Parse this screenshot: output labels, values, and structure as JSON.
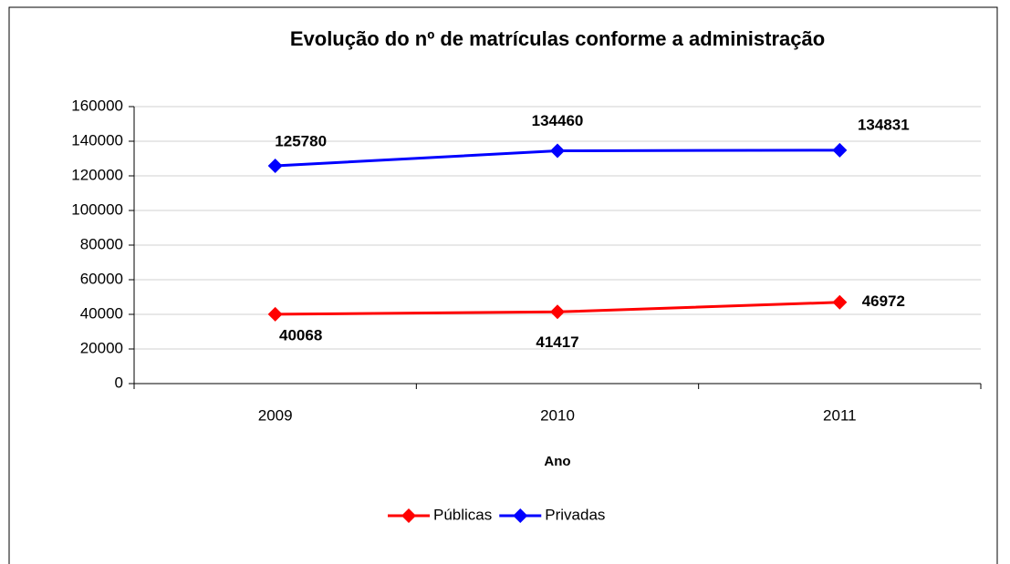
{
  "chart_data": {
    "type": "line",
    "title": "Evolução do nº de matrículas conforme a administração",
    "x_label": "Ano",
    "categories": [
      "2009",
      "2010",
      "2011"
    ],
    "series": [
      {
        "name": "Públicas",
        "color": "#ff0000",
        "values": [
          40068,
          41417,
          46972
        ]
      },
      {
        "name": "Privadas",
        "color": "#0000ff",
        "values": [
          125780,
          134460,
          134831
        ]
      }
    ],
    "ylim": [
      0,
      160000
    ],
    "yticks": [
      0,
      20000,
      40000,
      60000,
      80000,
      100000,
      120000,
      140000,
      160000
    ],
    "grid": true,
    "legend": "bottom"
  }
}
